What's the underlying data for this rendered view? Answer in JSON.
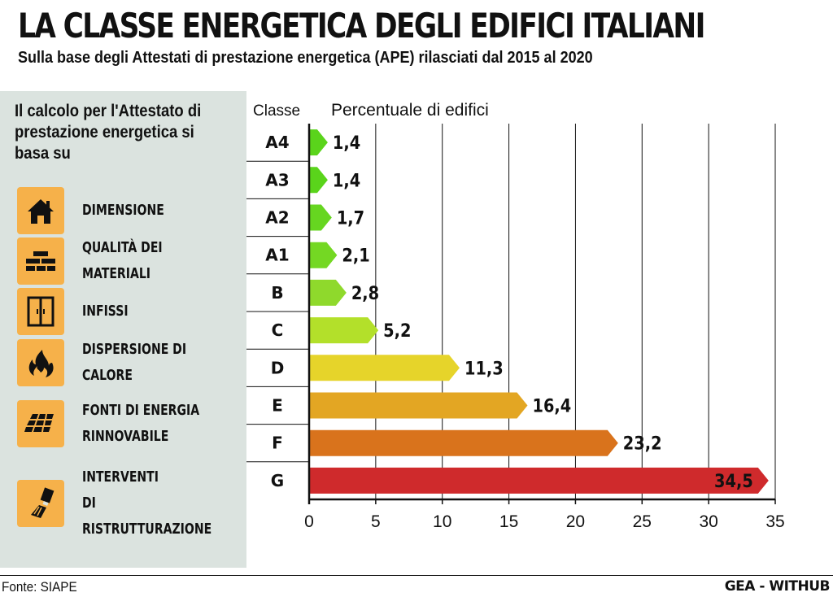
{
  "header": {
    "title": "LA CLASSE ENERGETICA DEGLI EDIFICI ITALIANI",
    "subtitle": "Sulla base degli Attestati di prestazione energetica (APE) rilasciati dal 2015 al 2020"
  },
  "panel": {
    "heading": "Il calcolo per l'Attestato di prestazione energetica si basa su",
    "icon_color": "#f6b14a",
    "factors": [
      {
        "label": "DIMENSIONE",
        "icon": "house-icon"
      },
      {
        "label": "QUALITÀ DEI MATERIALI",
        "icon": "bricks-icon"
      },
      {
        "label": "INFISSI",
        "icon": "window-icon"
      },
      {
        "label": "DISPERSIONE DI CALORE",
        "icon": "flame-icon"
      },
      {
        "label": "FONTI DI ENERGIA\nRINNOVABILE",
        "icon": "solar-panel-icon"
      },
      {
        "label": "INTERVENTI\nDI RISTRUTTURAZIONE",
        "icon": "paint-brush-icon"
      }
    ]
  },
  "chart_data": {
    "type": "bar",
    "orientation": "horizontal",
    "title": "",
    "category_header": "Classe",
    "xlabel": "Percentuale di edifici",
    "categories": [
      "A4",
      "A3",
      "A2",
      "A1",
      "B",
      "C",
      "D",
      "E",
      "F",
      "G"
    ],
    "values": [
      1.4,
      1.4,
      1.7,
      2.1,
      2.8,
      5.2,
      11.3,
      16.4,
      23.2,
      34.5
    ],
    "value_labels": [
      "1,4",
      "1,4",
      "1,7",
      "2,1",
      "2,8",
      "5,2",
      "11,3",
      "16,4",
      "23,2",
      "34,5"
    ],
    "colors": [
      "#5ad41b",
      "#5ad41b",
      "#66d620",
      "#74d823",
      "#8fd92c",
      "#b3e02a",
      "#e6d42a",
      "#e3a623",
      "#d9731c",
      "#cf2a2c"
    ],
    "xlim": [
      0,
      35
    ],
    "xticks": [
      0,
      5,
      10,
      15,
      20,
      25,
      30,
      35
    ],
    "grid": "vertical"
  },
  "footer": {
    "source": "Fonte: SIAPE",
    "credit": "GEA - WITHUB"
  }
}
